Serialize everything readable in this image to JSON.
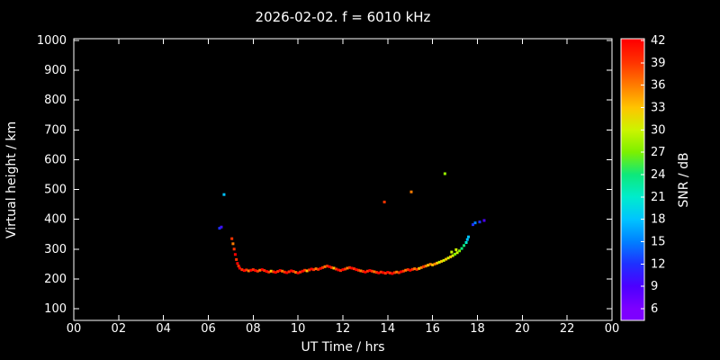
{
  "chart_data": {
    "type": "scatter",
    "title": "2026-02-02. f = 6010 kHz",
    "xlabel": "UT Time / hrs",
    "ylabel": "Virtual height / km",
    "colorbar_label": "SNR / dB",
    "background": "#000000",
    "foreground": "#ffffff",
    "xlim": [
      0,
      24
    ],
    "ylim": [
      100,
      1000
    ],
    "grid": false,
    "xticks": {
      "values": [
        0,
        2,
        4,
        6,
        8,
        10,
        12,
        14,
        16,
        18,
        20,
        22,
        24
      ],
      "labels": [
        "00",
        "02",
        "04",
        "06",
        "08",
        "10",
        "12",
        "14",
        "16",
        "18",
        "20",
        "22",
        "00"
      ]
    },
    "yticks": [
      100,
      200,
      300,
      400,
      500,
      600,
      700,
      800,
      900,
      1000
    ],
    "point_size": 3,
    "colorbar": {
      "min": 6,
      "max": 42,
      "ticks": [
        6,
        9,
        12,
        15,
        18,
        21,
        24,
        27,
        30,
        33,
        36,
        39,
        42
      ],
      "stops": [
        {
          "value": 6,
          "color": "#7d00ff"
        },
        {
          "value": 9,
          "color": "#4c00ff"
        },
        {
          "value": 12,
          "color": "#1e30ff"
        },
        {
          "value": 15,
          "color": "#0080ff"
        },
        {
          "value": 18,
          "color": "#00c4ff"
        },
        {
          "value": 21,
          "color": "#00eccc"
        },
        {
          "value": 24,
          "color": "#0ee87a"
        },
        {
          "value": 27,
          "color": "#7cf000"
        },
        {
          "value": 30,
          "color": "#ccf400"
        },
        {
          "value": 33,
          "color": "#ffc400"
        },
        {
          "value": 36,
          "color": "#ff7c00"
        },
        {
          "value": 39,
          "color": "#ff3400"
        },
        {
          "value": 42,
          "color": "#ff0000"
        }
      ]
    },
    "points": [
      [
        6.5,
        370,
        12
      ],
      [
        6.58,
        374,
        10
      ],
      [
        6.7,
        483,
        18
      ],
      [
        7.05,
        335,
        39
      ],
      [
        7.1,
        318,
        36
      ],
      [
        7.15,
        300,
        39
      ],
      [
        7.2,
        282,
        42
      ],
      [
        7.25,
        265,
        39
      ],
      [
        7.3,
        252,
        42
      ],
      [
        7.35,
        243,
        39
      ],
      [
        7.4,
        236,
        42
      ],
      [
        7.5,
        231,
        39
      ],
      [
        7.6,
        228,
        42
      ],
      [
        7.7,
        230,
        39
      ],
      [
        7.8,
        227,
        36
      ],
      [
        7.9,
        229,
        42
      ],
      [
        8.0,
        231,
        39
      ],
      [
        8.1,
        228,
        42
      ],
      [
        8.2,
        226,
        39
      ],
      [
        8.3,
        229,
        36
      ],
      [
        8.4,
        231,
        42
      ],
      [
        8.5,
        228,
        39
      ],
      [
        8.6,
        225,
        42
      ],
      [
        8.7,
        223,
        39
      ],
      [
        8.8,
        226,
        33
      ],
      [
        8.9,
        224,
        39
      ],
      [
        9.0,
        222,
        42
      ],
      [
        9.1,
        225,
        39
      ],
      [
        9.2,
        228,
        42
      ],
      [
        9.3,
        226,
        36
      ],
      [
        9.4,
        223,
        39
      ],
      [
        9.5,
        221,
        42
      ],
      [
        9.6,
        224,
        39
      ],
      [
        9.7,
        227,
        42
      ],
      [
        9.8,
        225,
        39
      ],
      [
        9.9,
        222,
        36
      ],
      [
        10.0,
        220,
        42
      ],
      [
        10.1,
        223,
        39
      ],
      [
        10.2,
        226,
        42
      ],
      [
        10.3,
        229,
        39
      ],
      [
        10.4,
        227,
        33
      ],
      [
        10.5,
        230,
        39
      ],
      [
        10.6,
        233,
        42
      ],
      [
        10.7,
        231,
        39
      ],
      [
        10.8,
        234,
        36
      ],
      [
        10.9,
        232,
        39
      ],
      [
        11.0,
        235,
        42
      ],
      [
        11.1,
        238,
        39
      ],
      [
        11.2,
        241,
        36
      ],
      [
        11.3,
        243,
        39
      ],
      [
        11.4,
        241,
        42
      ],
      [
        11.5,
        238,
        39
      ],
      [
        11.6,
        236,
        33
      ],
      [
        11.7,
        233,
        39
      ],
      [
        11.8,
        230,
        42
      ],
      [
        11.9,
        228,
        39
      ],
      [
        12.0,
        231,
        42
      ],
      [
        12.1,
        233,
        39
      ],
      [
        12.2,
        236,
        36
      ],
      [
        12.3,
        238,
        39
      ],
      [
        12.4,
        236,
        42
      ],
      [
        12.5,
        234,
        39
      ],
      [
        12.6,
        231,
        42
      ],
      [
        12.7,
        229,
        39
      ],
      [
        12.8,
        227,
        36
      ],
      [
        12.9,
        225,
        39
      ],
      [
        13.0,
        223,
        42
      ],
      [
        13.1,
        226,
        39
      ],
      [
        13.2,
        228,
        42
      ],
      [
        13.3,
        226,
        39
      ],
      [
        13.4,
        224,
        36
      ],
      [
        13.5,
        222,
        39
      ],
      [
        13.6,
        220,
        42
      ],
      [
        13.7,
        223,
        39
      ],
      [
        13.8,
        221,
        42
      ],
      [
        13.9,
        219,
        39
      ],
      [
        14.0,
        222,
        42
      ],
      [
        14.1,
        220,
        39
      ],
      [
        14.2,
        218,
        42
      ],
      [
        14.3,
        221,
        39
      ],
      [
        14.4,
        223,
        36
      ],
      [
        14.5,
        221,
        39
      ],
      [
        14.6,
        224,
        42
      ],
      [
        14.7,
        226,
        39
      ],
      [
        14.8,
        229,
        36
      ],
      [
        14.9,
        231,
        39
      ],
      [
        15.0,
        229,
        42
      ],
      [
        15.1,
        232,
        39
      ],
      [
        15.2,
        234,
        36
      ],
      [
        15.3,
        232,
        39
      ],
      [
        15.4,
        235,
        33
      ],
      [
        15.5,
        238,
        36
      ],
      [
        15.6,
        241,
        39
      ],
      [
        15.7,
        243,
        36
      ],
      [
        15.8,
        246,
        33
      ],
      [
        15.9,
        249,
        36
      ],
      [
        16.0,
        247,
        33
      ],
      [
        16.1,
        250,
        36
      ],
      [
        16.2,
        253,
        33
      ],
      [
        16.3,
        256,
        30
      ],
      [
        16.4,
        259,
        33
      ],
      [
        16.5,
        262,
        30
      ],
      [
        16.6,
        266,
        33
      ],
      [
        16.7,
        270,
        30
      ],
      [
        16.8,
        274,
        33
      ],
      [
        16.85,
        290,
        30
      ],
      [
        16.9,
        278,
        30
      ],
      [
        17.0,
        283,
        27
      ],
      [
        17.05,
        298,
        30
      ],
      [
        17.1,
        288,
        30
      ],
      [
        17.2,
        294,
        27
      ],
      [
        17.3,
        302,
        24
      ],
      [
        17.4,
        312,
        24
      ],
      [
        17.5,
        322,
        21
      ],
      [
        17.55,
        332,
        18
      ],
      [
        17.6,
        341,
        18
      ],
      [
        17.8,
        382,
        12
      ],
      [
        17.9,
        388,
        15
      ],
      [
        18.1,
        391,
        12
      ],
      [
        18.3,
        396,
        9
      ],
      [
        13.85,
        458,
        39
      ],
      [
        15.05,
        492,
        36
      ],
      [
        16.55,
        553,
        28
      ]
    ]
  }
}
